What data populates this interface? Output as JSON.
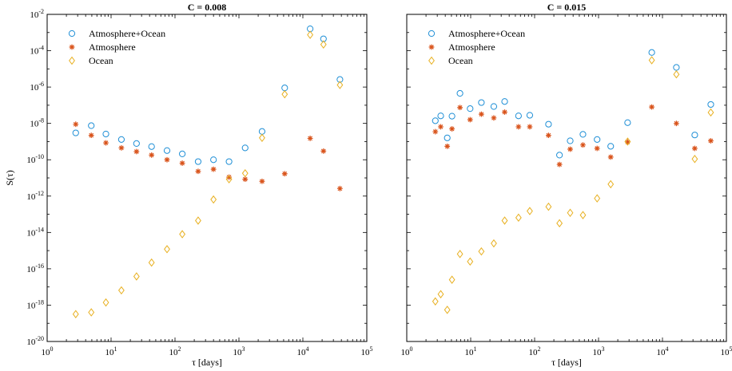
{
  "colors": {
    "atmosphere_ocean": "#1f8fd6",
    "atmosphere": "#d9541c",
    "ocean": "#e8b020"
  },
  "chart_data": [
    {
      "type": "scatter",
      "title": "C = 0.008",
      "xlabel": "τ [days]",
      "ylabel": "S(τ)",
      "x_scale": "log",
      "y_scale": "log",
      "xlim_exp": [
        0,
        5
      ],
      "ylim_exp": [
        -20,
        -2
      ],
      "x_tick_exps": [
        0,
        1,
        2,
        3,
        4,
        5
      ],
      "y_tick_exps": [
        -20,
        -18,
        -16,
        -14,
        -12,
        -10,
        -8,
        -6,
        -4,
        -2
      ],
      "legend_position": "top-left",
      "grid": false,
      "series": [
        {
          "name": "Atmosphere+Ocean",
          "marker": "circle",
          "color_key": "atmosphere_ocean",
          "points": [
            [
              2.8,
              3e-09
            ],
            [
              4.9,
              7.5e-09
            ],
            [
              8.3,
              2.6e-09
            ],
            [
              14.5,
              1.3e-09
            ],
            [
              25,
              7.8e-10
            ],
            [
              43,
              5.3e-10
            ],
            [
              75,
              3.2e-10
            ],
            [
              130,
              2.1e-10
            ],
            [
              230,
              7.9e-11
            ],
            [
              400,
              1e-10
            ],
            [
              700,
              7.9e-11
            ],
            [
              1250,
              4.5e-10
            ],
            [
              2300,
              3.6e-09
            ],
            [
              5200,
              9e-07
            ],
            [
              13000,
              0.0016
            ],
            [
              21000,
              0.00045
            ],
            [
              38000,
              2.6e-06
            ]
          ]
        },
        {
          "name": "Atmosphere",
          "marker": "star",
          "color_key": "atmosphere",
          "points": [
            [
              2.8,
              9e-09
            ],
            [
              4.9,
              2.2e-09
            ],
            [
              8.3,
              8.5e-10
            ],
            [
              14.5,
              4.5e-10
            ],
            [
              25,
              2.8e-10
            ],
            [
              43,
              1.8e-10
            ],
            [
              75,
              1e-10
            ],
            [
              130,
              6.5e-11
            ],
            [
              230,
              2.3e-11
            ],
            [
              400,
              3e-11
            ],
            [
              700,
              1.1e-11
            ],
            [
              1250,
              8.5e-12
            ],
            [
              2300,
              6.5e-12
            ],
            [
              5200,
              1.7e-11
            ],
            [
              13000,
              1.5e-09
            ],
            [
              21000,
              3e-10
            ],
            [
              38000,
              2.6e-12
            ]
          ]
        },
        {
          "name": "Ocean",
          "marker": "diamond",
          "color_key": "ocean",
          "points": [
            [
              2.8,
              3.2e-19
            ],
            [
              4.9,
              4e-19
            ],
            [
              8.3,
              1.4e-18
            ],
            [
              14.5,
              6.5e-18
            ],
            [
              25,
              3.8e-17
            ],
            [
              43,
              2.2e-16
            ],
            [
              75,
              1.2e-15
            ],
            [
              130,
              8e-15
            ],
            [
              230,
              4.5e-14
            ],
            [
              400,
              6.5e-13
            ],
            [
              700,
              8.5e-12
            ],
            [
              1250,
              1.8e-11
            ],
            [
              2300,
              1.6e-09
            ],
            [
              5200,
              4e-07
            ],
            [
              13000,
              0.00075
            ],
            [
              21000,
              0.00022
            ],
            [
              38000,
              1.3e-06
            ]
          ]
        }
      ]
    },
    {
      "type": "scatter",
      "title": "C = 0.015",
      "xlabel": "τ [days]",
      "ylabel": "",
      "x_scale": "log",
      "y_scale": "log",
      "xlim_exp": [
        0,
        5
      ],
      "ylim_exp": [
        -20,
        -2
      ],
      "x_tick_exps": [
        0,
        1,
        2,
        3,
        4,
        5
      ],
      "y_tick_exps": [
        -20,
        -18,
        -16,
        -14,
        -12,
        -10,
        -8,
        -6,
        -4,
        -2
      ],
      "legend_position": "top-left",
      "grid": false,
      "series": [
        {
          "name": "Atmosphere+Ocean",
          "marker": "circle",
          "color_key": "atmosphere_ocean",
          "points": [
            [
              2.8,
              1.4e-08
            ],
            [
              3.4,
              2.6e-08
            ],
            [
              4.3,
              1.6e-09
            ],
            [
              5.1,
              2.5e-08
            ],
            [
              6.8,
              4.5e-07
            ],
            [
              9.8,
              6.5e-08
            ],
            [
              14.7,
              1.4e-07
            ],
            [
              23,
              8.5e-08
            ],
            [
              34,
              1.6e-07
            ],
            [
              56,
              2.6e-08
            ],
            [
              84,
              2.8e-08
            ],
            [
              165,
              9e-09
            ],
            [
              245,
              1.8e-10
            ],
            [
              360,
              1.1e-09
            ],
            [
              570,
              2.5e-09
            ],
            [
              950,
              1.3e-09
            ],
            [
              1550,
              5.5e-10
            ],
            [
              2850,
              1.1e-08
            ],
            [
              6800,
              8e-05
            ],
            [
              16500,
              1.2e-05
            ],
            [
              32000,
              2.3e-09
            ],
            [
              57000,
              1.1e-07
            ]
          ]
        },
        {
          "name": "Atmosphere",
          "marker": "star",
          "color_key": "atmosphere",
          "points": [
            [
              2.8,
              3.5e-09
            ],
            [
              3.4,
              6.5e-09
            ],
            [
              4.3,
              5.5e-10
            ],
            [
              5.1,
              5e-09
            ],
            [
              6.8,
              7.5e-08
            ],
            [
              9.8,
              1.6e-08
            ],
            [
              14.7,
              3.2e-08
            ],
            [
              23,
              2e-08
            ],
            [
              34,
              4.2e-08
            ],
            [
              56,
              6.5e-09
            ],
            [
              84,
              6.5e-09
            ],
            [
              165,
              2.2e-09
            ],
            [
              245,
              5.5e-11
            ],
            [
              360,
              3.8e-10
            ],
            [
              570,
              6.5e-10
            ],
            [
              950,
              4.2e-10
            ],
            [
              1550,
              1.4e-10
            ],
            [
              2850,
              9.5e-10
            ],
            [
              6800,
              8e-08
            ],
            [
              16500,
              1e-08
            ],
            [
              32000,
              4.2e-10
            ],
            [
              57000,
              1.1e-09
            ]
          ]
        },
        {
          "name": "Ocean",
          "marker": "diamond",
          "color_key": "ocean",
          "points": [
            [
              2.8,
              1.6e-18
            ],
            [
              3.4,
              4e-18
            ],
            [
              4.3,
              5.5e-19
            ],
            [
              5.1,
              2.5e-17
            ],
            [
              6.8,
              6.5e-16
            ],
            [
              9.8,
              2.5e-16
            ],
            [
              14.7,
              9e-16
            ],
            [
              23,
              2.5e-15
            ],
            [
              34,
              4.5e-14
            ],
            [
              56,
              6.5e-14
            ],
            [
              84,
              1.5e-13
            ],
            [
              165,
              2.6e-13
            ],
            [
              245,
              3.2e-14
            ],
            [
              360,
              1.2e-13
            ],
            [
              570,
              9e-14
            ],
            [
              950,
              7.5e-13
            ],
            [
              1550,
              4.5e-12
            ],
            [
              2850,
              1e-09
            ],
            [
              6800,
              3e-05
            ],
            [
              16500,
              5e-06
            ],
            [
              32000,
              1.1e-10
            ],
            [
              57000,
              4e-08
            ]
          ]
        }
      ]
    }
  ]
}
